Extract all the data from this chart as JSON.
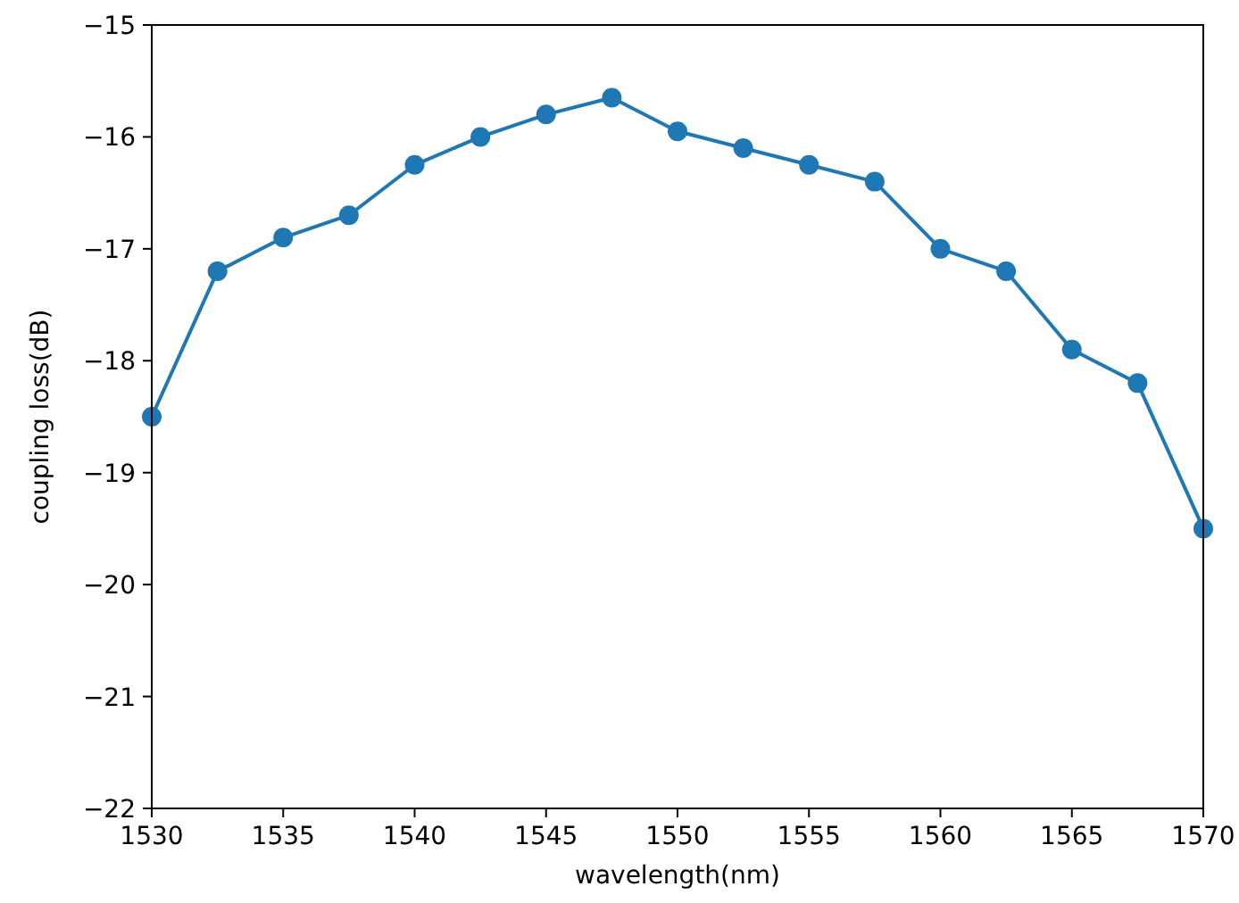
{
  "chart_data": {
    "type": "line",
    "xlabel": "wavelength(nm)",
    "ylabel": "coupling loss(dB)",
    "x": [
      1530,
      1532.5,
      1535,
      1537.5,
      1540,
      1542.5,
      1545,
      1547.5,
      1550,
      1552.5,
      1555,
      1557.5,
      1560,
      1562.5,
      1565,
      1567.5,
      1570
    ],
    "series": [
      {
        "color": "#1f77b4",
        "values": [
          -18.5,
          -17.2,
          -16.9,
          -16.7,
          -16.25,
          -16.0,
          -15.8,
          -15.65,
          -15.95,
          -16.1,
          -16.25,
          -16.4,
          -17.0,
          -17.2,
          -17.9,
          -18.2,
          -19.5
        ]
      }
    ],
    "xlim": [
      1530,
      1570
    ],
    "xticks": [
      1530,
      1535,
      1540,
      1545,
      1550,
      1555,
      1560,
      1565,
      1570
    ],
    "ylim": [
      -22,
      -15
    ],
    "yticks": [
      -22,
      -21,
      -20,
      -19,
      -18,
      -17,
      -16,
      -15
    ],
    "marker": "circle",
    "line_style": "solid"
  }
}
